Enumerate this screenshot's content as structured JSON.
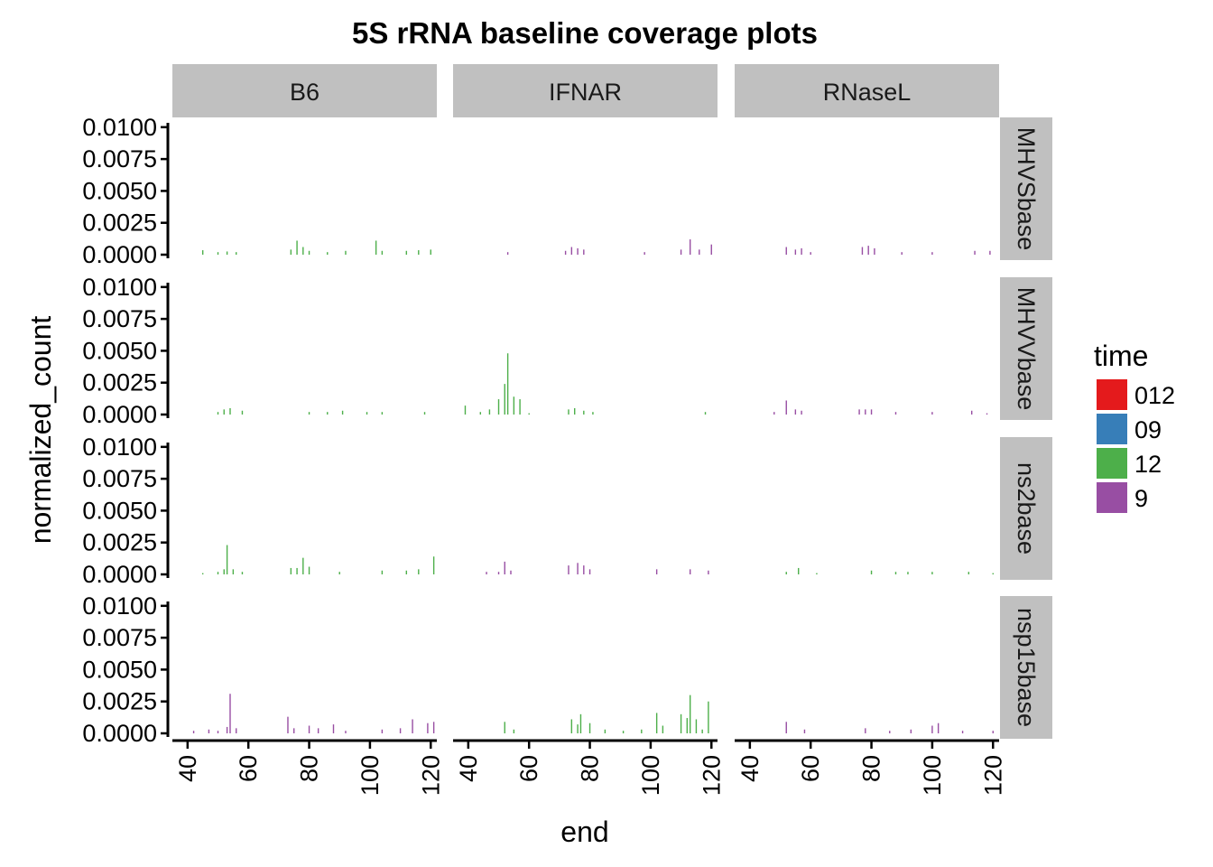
{
  "chart_data": {
    "type": "bar",
    "title": "5S rRNA baseline coverage plots",
    "xlabel": "end",
    "ylabel": "normalized_count",
    "xlim": [
      35,
      122
    ],
    "ylim": [
      0,
      0.0102
    ],
    "x_ticks": [
      40,
      60,
      80,
      100,
      120
    ],
    "y_ticks": [
      0.0,
      0.0025,
      0.005,
      0.0075,
      0.01
    ],
    "y_tick_labels": [
      "0.0000",
      "0.0025",
      "0.0050",
      "0.0075",
      "0.0100"
    ],
    "columns": [
      "B6",
      "IFNAR",
      "RNaseL"
    ],
    "rows": [
      "MHVSbase",
      "MHVVbase",
      "ns2base",
      "nsp15base"
    ],
    "legend": {
      "title": "time",
      "position": "right",
      "entries": [
        {
          "label": "012",
          "color": "#e41a1c"
        },
        {
          "label": "09",
          "color": "#377eb8"
        },
        {
          "label": "12",
          "color": "#4daf4a"
        },
        {
          "label": "9",
          "color": "#984ea3"
        }
      ]
    },
    "grid": false,
    "panels": [
      {
        "row": "MHVSbase",
        "col": "B6",
        "series": "12",
        "points": [
          [
            45,
            0.00035
          ],
          [
            50,
            0.0002
          ],
          [
            53,
            0.00025
          ],
          [
            56,
            0.0002
          ],
          [
            74,
            0.0004
          ],
          [
            76,
            0.0011
          ],
          [
            78,
            0.0006
          ],
          [
            80,
            0.0003
          ],
          [
            86,
            0.0002
          ],
          [
            92,
            0.0003
          ],
          [
            102,
            0.0011
          ],
          [
            104,
            0.0003
          ],
          [
            112,
            0.0003
          ],
          [
            116,
            0.00035
          ],
          [
            120,
            0.0004
          ]
        ]
      },
      {
        "row": "MHVSbase",
        "col": "IFNAR",
        "series": "9",
        "points": [
          [
            53,
            0.0002
          ],
          [
            72,
            0.0003
          ],
          [
            74,
            0.0006
          ],
          [
            76,
            0.0005
          ],
          [
            78,
            0.0004
          ],
          [
            98,
            0.0002
          ],
          [
            110,
            0.0004
          ],
          [
            113,
            0.0012
          ],
          [
            116,
            0.0004
          ],
          [
            120,
            0.0008
          ]
        ]
      },
      {
        "row": "MHVSbase",
        "col": "RNaseL",
        "series": "9",
        "points": [
          [
            52,
            0.0006
          ],
          [
            55,
            0.0004
          ],
          [
            57,
            0.0005
          ],
          [
            60,
            0.0002
          ],
          [
            77,
            0.0006
          ],
          [
            79,
            0.0007
          ],
          [
            81,
            0.0005
          ],
          [
            90,
            0.0002
          ],
          [
            100,
            0.0002
          ],
          [
            114,
            0.0003
          ],
          [
            119,
            0.0003
          ]
        ]
      },
      {
        "row": "MHVVbase",
        "col": "B6",
        "series": "12",
        "points": [
          [
            50,
            0.0002
          ],
          [
            52,
            0.0004
          ],
          [
            54,
            0.0005
          ],
          [
            58,
            0.0003
          ],
          [
            80,
            0.0002
          ],
          [
            86,
            0.0002
          ],
          [
            91,
            0.0003
          ],
          [
            99,
            0.0002
          ],
          [
            104,
            0.0002
          ],
          [
            118,
            0.0002
          ]
        ]
      },
      {
        "row": "MHVVbase",
        "col": "IFNAR",
        "series": "12",
        "points": [
          [
            39,
            0.0007
          ],
          [
            44,
            0.0002
          ],
          [
            47,
            0.0004
          ],
          [
            50,
            0.0012
          ],
          [
            52,
            0.0024
          ],
          [
            53,
            0.0048
          ],
          [
            55,
            0.0014
          ],
          [
            57,
            0.0012
          ],
          [
            60,
            0.0001
          ],
          [
            73,
            0.0004
          ],
          [
            75,
            0.0005
          ],
          [
            78,
            0.0003
          ],
          [
            81,
            0.0002
          ],
          [
            118,
            0.0002
          ]
        ]
      },
      {
        "row": "MHVVbase",
        "col": "RNaseL",
        "series": "9",
        "points": [
          [
            48,
            0.0002
          ],
          [
            52,
            0.0011
          ],
          [
            55,
            0.0004
          ],
          [
            57,
            0.0003
          ],
          [
            76,
            0.0004
          ],
          [
            78,
            0.0004
          ],
          [
            80,
            0.0004
          ],
          [
            88,
            0.0002
          ],
          [
            100,
            0.0002
          ],
          [
            113,
            0.0003
          ],
          [
            118,
            0.0001
          ]
        ]
      },
      {
        "row": "ns2base",
        "col": "B6",
        "series": "12",
        "points": [
          [
            45,
            0.0001
          ],
          [
            50,
            0.0002
          ],
          [
            52,
            0.0004
          ],
          [
            53,
            0.0023
          ],
          [
            55,
            0.0004
          ],
          [
            58,
            0.0002
          ],
          [
            74,
            0.0005
          ],
          [
            76,
            0.0005
          ],
          [
            78,
            0.0013
          ],
          [
            80,
            0.0006
          ],
          [
            90,
            0.0002
          ],
          [
            104,
            0.0003
          ],
          [
            112,
            0.0003
          ],
          [
            116,
            0.0004
          ],
          [
            121,
            0.0014
          ]
        ]
      },
      {
        "row": "ns2base",
        "col": "IFNAR",
        "series": "9",
        "points": [
          [
            46,
            0.0002
          ],
          [
            50,
            0.0002
          ],
          [
            52,
            0.001
          ],
          [
            54,
            0.0003
          ],
          [
            73,
            0.0007
          ],
          [
            76,
            0.0009
          ],
          [
            78,
            0.0007
          ],
          [
            80,
            0.0004
          ],
          [
            102,
            0.0004
          ],
          [
            113,
            0.0004
          ],
          [
            119,
            0.0003
          ]
        ]
      },
      {
        "row": "ns2base",
        "col": "RNaseL",
        "series": "12",
        "points": [
          [
            52,
            0.0002
          ],
          [
            56,
            0.0005
          ],
          [
            62,
            0.0001
          ],
          [
            80,
            0.0003
          ],
          [
            88,
            0.0002
          ],
          [
            92,
            0.0002
          ],
          [
            100,
            0.0002
          ],
          [
            112,
            0.0002
          ],
          [
            120,
            0.0001
          ]
        ]
      },
      {
        "row": "nsp15base",
        "col": "B6",
        "series": "9",
        "points": [
          [
            42,
            0.0002
          ],
          [
            47,
            0.0003
          ],
          [
            50,
            0.0002
          ],
          [
            53,
            0.0005
          ],
          [
            54,
            0.0031
          ],
          [
            56,
            0.0004
          ],
          [
            73,
            0.0013
          ],
          [
            75,
            0.0004
          ],
          [
            80,
            0.0006
          ],
          [
            83,
            0.0004
          ],
          [
            88,
            0.0007
          ],
          [
            92,
            0.0002
          ],
          [
            104,
            0.0003
          ],
          [
            110,
            0.0004
          ],
          [
            114,
            0.0011
          ],
          [
            119,
            0.0008
          ],
          [
            121,
            0.0009
          ]
        ]
      },
      {
        "row": "nsp15base",
        "col": "IFNAR",
        "series": "12",
        "points": [
          [
            52,
            0.0009
          ],
          [
            55,
            0.0003
          ],
          [
            74,
            0.0011
          ],
          [
            76,
            0.0007
          ],
          [
            77,
            0.0015
          ],
          [
            80,
            0.0008
          ],
          [
            85,
            0.0003
          ],
          [
            91,
            0.0002
          ],
          [
            97,
            0.0003
          ],
          [
            102,
            0.0016
          ],
          [
            104,
            0.0006
          ],
          [
            110,
            0.0015
          ],
          [
            112,
            0.0012
          ],
          [
            113,
            0.003
          ],
          [
            115,
            0.0011
          ],
          [
            117,
            0.0003
          ],
          [
            119,
            0.0025
          ]
        ]
      },
      {
        "row": "nsp15base",
        "col": "RNaseL",
        "series": "9",
        "points": [
          [
            52,
            0.0009
          ],
          [
            58,
            0.0003
          ],
          [
            78,
            0.0004
          ],
          [
            86,
            0.0002
          ],
          [
            93,
            0.0003
          ],
          [
            100,
            0.0006
          ],
          [
            102,
            0.0008
          ],
          [
            110,
            0.0002
          ],
          [
            120,
            0.0002
          ]
        ]
      }
    ]
  }
}
